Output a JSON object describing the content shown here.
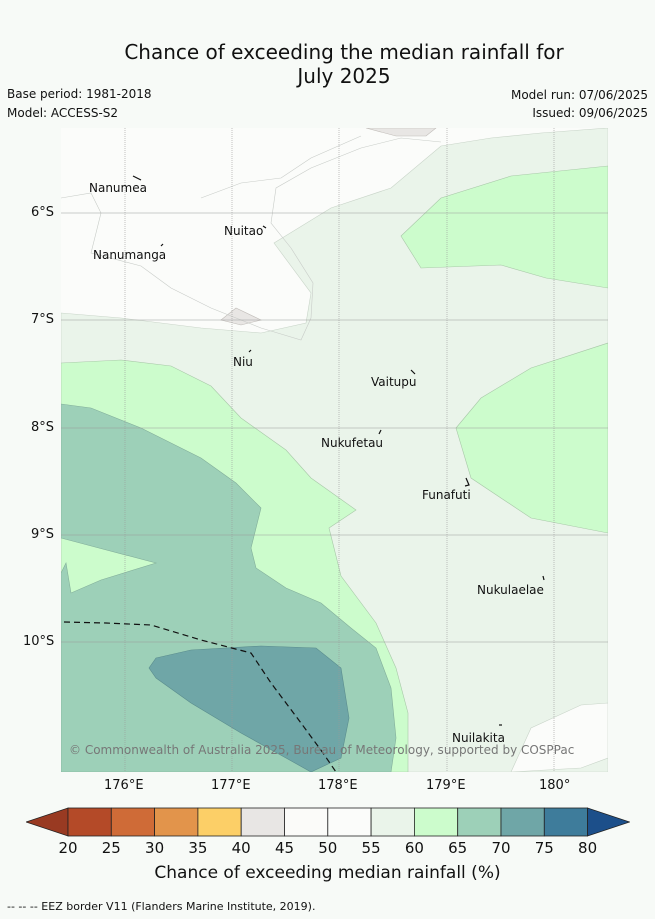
{
  "title_line1": "Chance of exceeding the median rainfall for",
  "title_line2": "July 2025",
  "base_period": "Base period: 1981-2018",
  "model": "Model: ACCESS-S2",
  "model_run": "Model run: 07/06/2025",
  "issued": "Issued: 09/06/2025",
  "lat_labels": [
    "6°S",
    "7°S",
    "8°S",
    "9°S",
    "10°S"
  ],
  "lon_labels": [
    "176°E",
    "177°E",
    "178°E",
    "179°E",
    "180°"
  ],
  "places": [
    {
      "name": "Nanumea"
    },
    {
      "name": "Nuitao"
    },
    {
      "name": "Nanumanga"
    },
    {
      "name": "Niu"
    },
    {
      "name": "Vaitupu"
    },
    {
      "name": "Nukufetau"
    },
    {
      "name": "Funafuti"
    },
    {
      "name": "Nukulaelae"
    },
    {
      "name": "Nuilakita"
    }
  ],
  "copyright": "© Commonwealth of Australia 2025, Bureau of Meteorology, supported by COSPPac",
  "colorbar": {
    "ticks": [
      "20",
      "25",
      "30",
      "35",
      "40",
      "45",
      "50",
      "55",
      "60",
      "65",
      "70",
      "75",
      "80"
    ],
    "colors": [
      "#b44a28",
      "#cf6b37",
      "#e2944b",
      "#fccf67",
      "#e8e6e4",
      "#fbfbf9",
      "#fbfcfa",
      "#eaf4ea",
      "#ccfccc",
      "#9dd0b8",
      "#6fa6a7",
      "#3e7c9b"
    ],
    "under_color": "#993a22",
    "over_color": "#1c4f8a",
    "label": "Chance of exceeding median rainfall (%)"
  },
  "footnote": "--  --  -- EEZ border V11 (Flanders Marine Institute, 2019)."
}
